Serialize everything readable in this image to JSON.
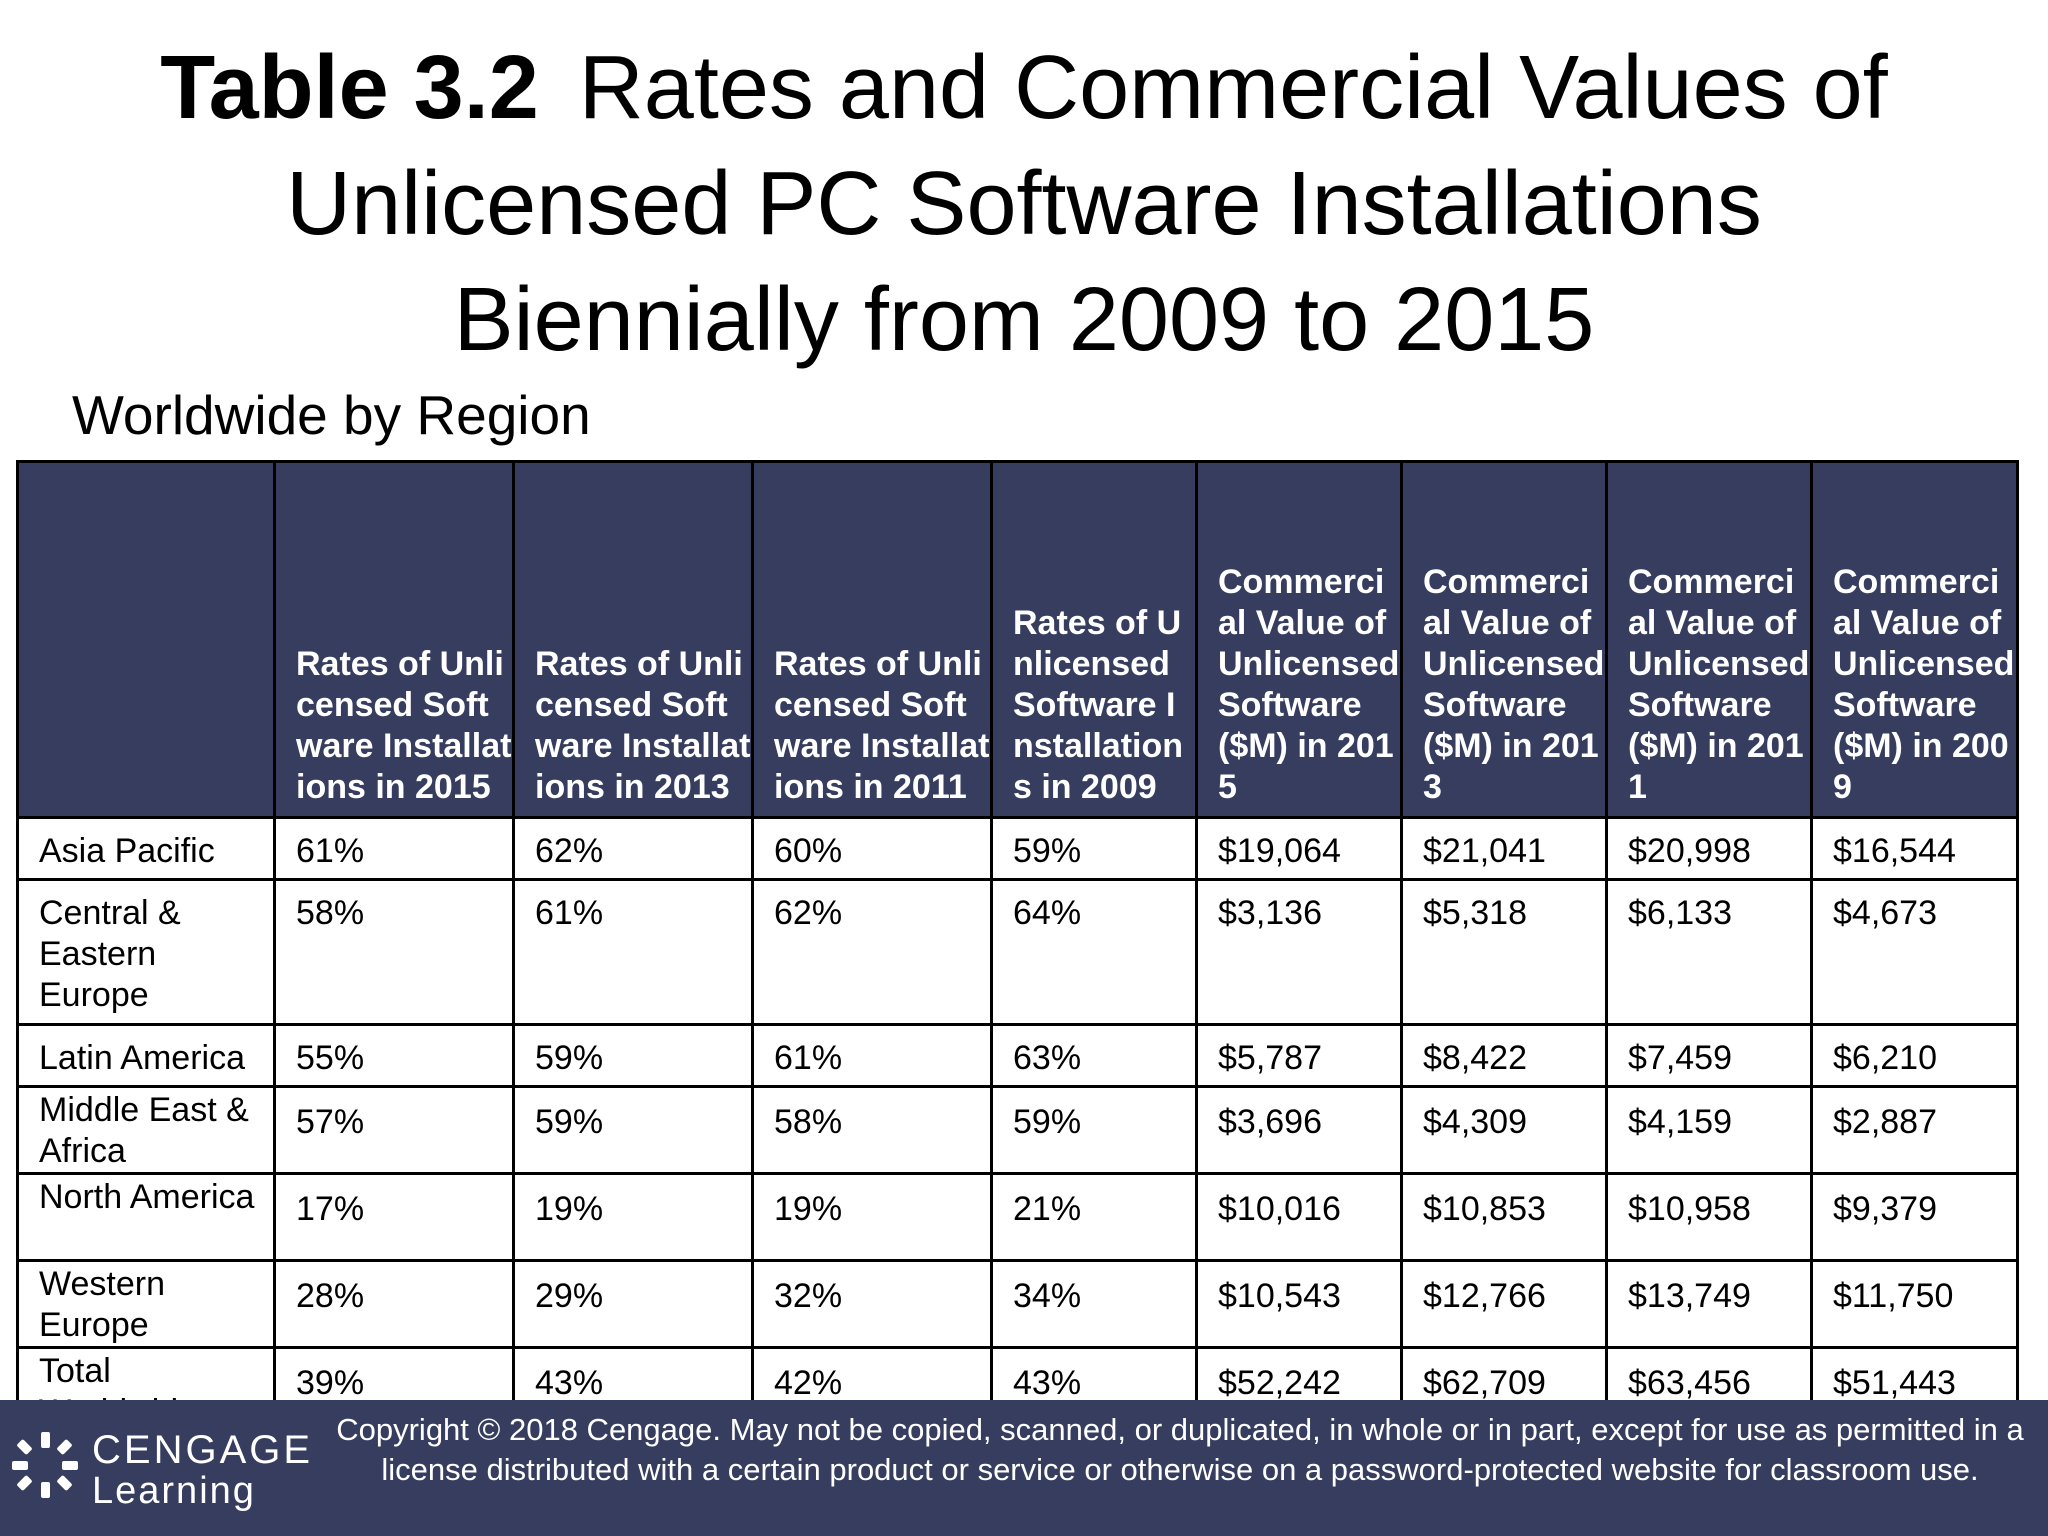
{
  "title": {
    "bold": "Table 3.2",
    "line1_rest": "Rates and Commercial Values of",
    "line2": "Unlicensed PC Software Installations",
    "line3": "Biennially from 2009 to 2015"
  },
  "subtitle": "Worldwide by Region",
  "table": {
    "headers": [
      "",
      "Rates of Unlicensed Software Installations in 2015",
      "Rates of Unlicensed Software Installations in 2013",
      "Rates of Unlicensed Software Installations in 2011",
      "Rates of Unlicensed Software Installations in 2009",
      "Commercial Value of Unlicensed Software ($M) in 2015",
      "Commercial Value of Unlicensed Software ($M) in 2013",
      "Commercial Value of Unlicensed Software ($M) in 2011",
      "Commercial Value of Unlicensed Software ($M) in 2009"
    ],
    "rows": [
      {
        "region": "Asia Pacific",
        "values": [
          "61%",
          "62%",
          "60%",
          "59%",
          "$19,064",
          "$21,041",
          "$20,998",
          "$16,544"
        ]
      },
      {
        "region": "Central & Eastern Europe",
        "values": [
          "58%",
          "61%",
          "62%",
          "64%",
          "$3,136",
          "$5,318",
          "$6,133",
          "$4,673"
        ]
      },
      {
        "region": "Latin America",
        "values": [
          "55%",
          "59%",
          "61%",
          "63%",
          "$5,787",
          "$8,422",
          "$7,459",
          "$6,210"
        ]
      },
      {
        "region": "Middle East & Africa",
        "values": [
          "57%",
          "59%",
          "58%",
          "59%",
          "$3,696",
          "$4,309",
          "$4,159",
          "$2,887"
        ]
      },
      {
        "region": "North America",
        "values": [
          "17%",
          "19%",
          "19%",
          "21%",
          "$10,016",
          "$10,853",
          "$10,958",
          "$9,379"
        ]
      },
      {
        "region": "Western Europe",
        "values": [
          "28%",
          "29%",
          "32%",
          "34%",
          "$10,543",
          "$12,766",
          "$13,749",
          "$11,750"
        ]
      },
      {
        "region": "Total Worldwide",
        "values": [
          "39%",
          "43%",
          "42%",
          "43%",
          "$52,242",
          "$62,709",
          "$63,456",
          "$51,443"
        ]
      }
    ]
  },
  "footer": {
    "logo_line1": "CENGAGE",
    "logo_line2": "Learning",
    "copyright": "Copyright © 2018 Cengage. May not be copied, scanned, or duplicated, in whole or in part, except for use as permitted in a license distributed with a certain product or service or otherwise on a password-protected website for classroom use."
  },
  "colors": {
    "header_bg": "#363d5f",
    "footer_bg": "#363d5f",
    "header_text": "#ffffff"
  }
}
